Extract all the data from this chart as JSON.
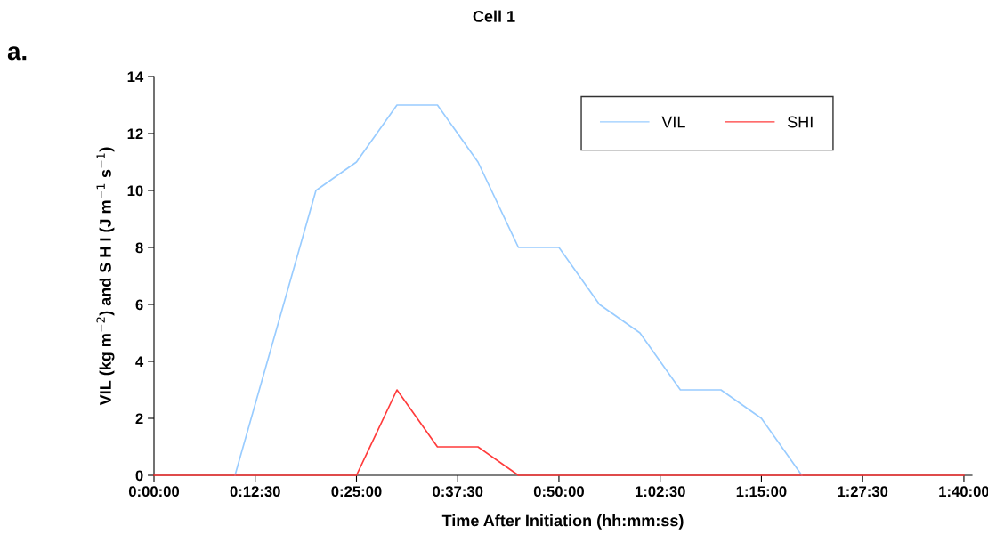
{
  "chart_data": {
    "type": "line",
    "title": "Cell 1",
    "xlabel": "Time After Initiation (hh:mm:ss)",
    "ylabel": "VIL (kg m$^{−2}$) and S H I (J m$^{−1}$ s$^{−1}$)",
    "annotations": [
      "a."
    ],
    "x": [
      0,
      0.0833,
      0.1667,
      0.25,
      0.3333,
      0.4167,
      0.5,
      0.5833,
      0.6667,
      0.75,
      0.8333,
      0.9167,
      1.0,
      1.0833,
      1.1667,
      1.25,
      1.3333,
      1.4167,
      1.5,
      1.5833,
      1.6667
    ],
    "series": [
      {
        "name": "VIL",
        "color": "#99ccff",
        "values": [
          null,
          null,
          0,
          5,
          10,
          11,
          13,
          13,
          11,
          8,
          8,
          6,
          5,
          3,
          3,
          2,
          0,
          null,
          null,
          null,
          null
        ]
      },
      {
        "name": "SHI",
        "color": "#ff3b3b",
        "values": [
          0,
          0,
          0,
          0,
          0,
          0,
          3,
          1,
          1,
          0,
          0,
          0,
          0,
          0,
          0,
          0,
          0,
          0,
          0,
          0,
          0
        ]
      }
    ],
    "xlim": [
      0,
      1.6833
    ],
    "xticks": [
      {
        "value": 0,
        "label": "0:00:00"
      },
      {
        "value": 0.2083,
        "label": "0:12:30"
      },
      {
        "value": 0.4167,
        "label": "0:25:00"
      },
      {
        "value": 0.625,
        "label": "0:37:30"
      },
      {
        "value": 0.8333,
        "label": "0:50:00"
      },
      {
        "value": 1.0417,
        "label": "1:02:30"
      },
      {
        "value": 1.25,
        "label": "1:15:00"
      },
      {
        "value": 1.4583,
        "label": "1:27:30"
      },
      {
        "value": 1.6667,
        "label": "1:40:00"
      }
    ],
    "ylim": [
      0,
      14
    ],
    "yticks": [
      0,
      2,
      4,
      6,
      8,
      10,
      12,
      14
    ],
    "grid": false,
    "legend": "top right",
    "marker": "none",
    "line_style": "solid"
  }
}
